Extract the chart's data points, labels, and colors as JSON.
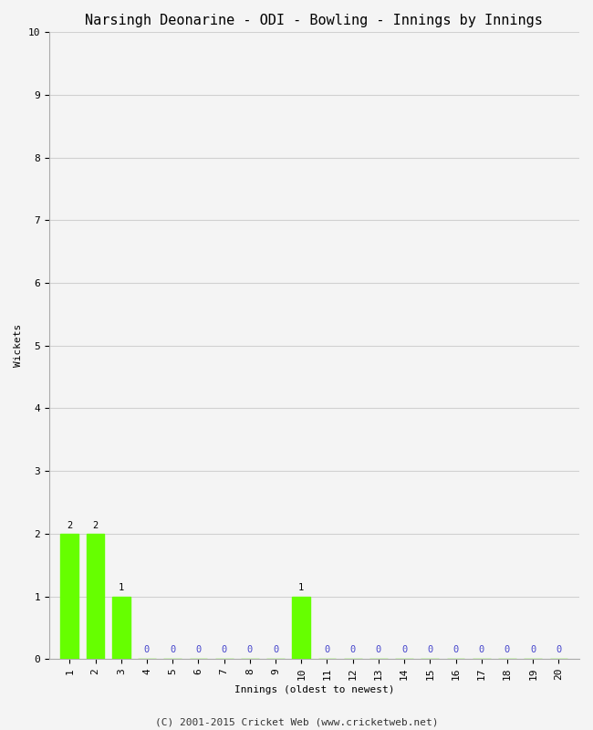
{
  "title": "Narsingh Deonarine - ODI - Bowling - Innings by Innings",
  "xlabel": "Innings (oldest to newest)",
  "ylabel": "Wickets",
  "footer": "(C) 2001-2015 Cricket Web (www.cricketweb.net)",
  "innings": [
    1,
    2,
    3,
    4,
    5,
    6,
    7,
    8,
    9,
    10,
    11,
    12,
    13,
    14,
    15,
    16,
    17,
    18,
    19,
    20
  ],
  "wickets": [
    2,
    2,
    1,
    0,
    0,
    0,
    0,
    0,
    0,
    1,
    0,
    0,
    0,
    0,
    0,
    0,
    0,
    0,
    0,
    0
  ],
  "bar_color": "#66ff00",
  "zero_label_color": "#4444cc",
  "nonzero_label_color": "#000000",
  "ylim": [
    0,
    10
  ],
  "yticks": [
    0,
    1,
    2,
    3,
    4,
    5,
    6,
    7,
    8,
    9,
    10
  ],
  "xticks": [
    1,
    2,
    3,
    4,
    5,
    6,
    7,
    8,
    9,
    10,
    11,
    12,
    13,
    14,
    15,
    16,
    17,
    18,
    19,
    20
  ],
  "grid_color": "#d0d0d0",
  "bg_color": "#f4f4f4",
  "title_fontsize": 11,
  "label_fontsize": 8,
  "tick_fontsize": 8,
  "bar_label_fontsize": 7.5,
  "footer_fontsize": 8
}
